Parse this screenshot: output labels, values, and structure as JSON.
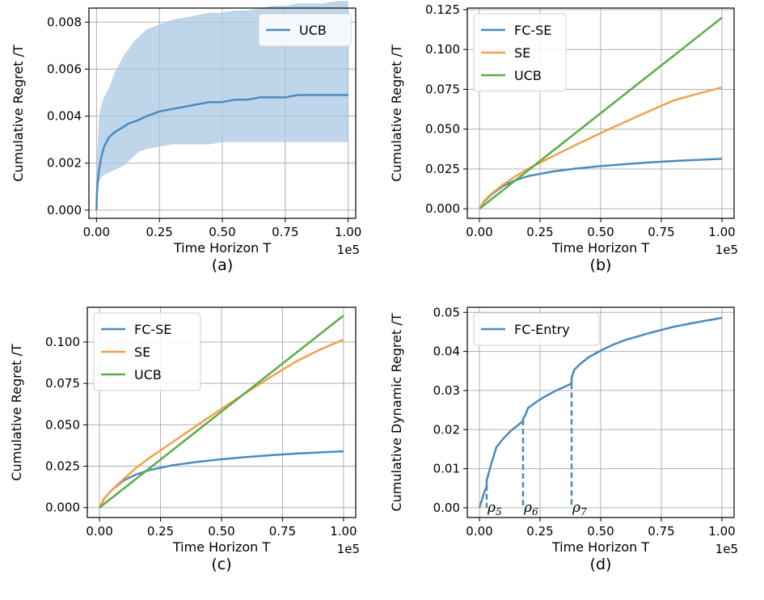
{
  "chart_data": [
    {
      "id": "a",
      "type": "line",
      "caption": "(a)",
      "xlabel": "Time Horizon T",
      "ylabel": "Cumulative Regret /T",
      "offset_text": "1e5",
      "xlim": [
        -0.03,
        1.03
      ],
      "ylim": [
        -0.00035,
        0.0086
      ],
      "xticks": [
        0.0,
        0.25,
        0.5,
        0.75,
        1.0
      ],
      "xtick_labels": [
        "0.00",
        "0.25",
        "0.50",
        "0.75",
        "1.00"
      ],
      "yticks": [
        0.0,
        0.002,
        0.004,
        0.006,
        0.008
      ],
      "ytick_labels": [
        "0.000",
        "0.002",
        "0.004",
        "0.006",
        "0.008"
      ],
      "grid": true,
      "legend_position": "top-right",
      "band": {
        "x": [
          0.0,
          0.003,
          0.01,
          0.02,
          0.03,
          0.05,
          0.07,
          0.09,
          0.11,
          0.13,
          0.15,
          0.17,
          0.2,
          0.25,
          0.3,
          0.35,
          0.4,
          0.45,
          0.5,
          0.55,
          0.6,
          0.65,
          0.7,
          0.75,
          0.8,
          0.85,
          0.9,
          0.95,
          1.0
        ],
        "upper": [
          0.0,
          0.0025,
          0.004,
          0.0045,
          0.0048,
          0.0052,
          0.0058,
          0.0062,
          0.0066,
          0.0069,
          0.0072,
          0.0074,
          0.0077,
          0.0079,
          0.0081,
          0.0082,
          0.0083,
          0.0084,
          0.0084,
          0.0085,
          0.0085,
          0.0086,
          0.0087,
          0.0087,
          0.0088,
          0.0088,
          0.0088,
          0.0089,
          0.0089
        ],
        "lower": [
          0.0,
          0.0008,
          0.0012,
          0.0014,
          0.0015,
          0.0016,
          0.0017,
          0.0018,
          0.0019,
          0.0021,
          0.0023,
          0.0025,
          0.0026,
          0.0027,
          0.0028,
          0.0028,
          0.0028,
          0.0028,
          0.0029,
          0.0029,
          0.0029,
          0.0029,
          0.0029,
          0.0029,
          0.0029,
          0.0029,
          0.0029,
          0.0029,
          0.0029
        ]
      },
      "series": [
        {
          "name": "UCB",
          "color": "#4a8bbf",
          "x": [
            0.0,
            0.002,
            0.005,
            0.01,
            0.02,
            0.03,
            0.05,
            0.07,
            0.1,
            0.13,
            0.16,
            0.2,
            0.25,
            0.3,
            0.35,
            0.4,
            0.45,
            0.5,
            0.55,
            0.6,
            0.65,
            0.7,
            0.75,
            0.8,
            0.85,
            0.9,
            0.95,
            1.0
          ],
          "y": [
            0.0,
            0.0007,
            0.0012,
            0.0017,
            0.0023,
            0.0027,
            0.0031,
            0.0033,
            0.0035,
            0.0037,
            0.0038,
            0.004,
            0.0042,
            0.0043,
            0.0044,
            0.0045,
            0.0046,
            0.0046,
            0.0047,
            0.0047,
            0.0048,
            0.0048,
            0.0048,
            0.0049,
            0.0049,
            0.0049,
            0.0049,
            0.0049
          ]
        }
      ]
    },
    {
      "id": "b",
      "type": "line",
      "caption": "(b)",
      "xlabel": "Time Horizon T",
      "ylabel": "Cumulative Regret /T",
      "offset_text": "1e5",
      "xlim": [
        -0.05,
        1.05
      ],
      "ylim": [
        -0.006,
        0.126
      ],
      "xticks": [
        0.0,
        0.25,
        0.5,
        0.75,
        1.0
      ],
      "xtick_labels": [
        "0.00",
        "0.25",
        "0.50",
        "0.75",
        "1.00"
      ],
      "yticks": [
        0.0,
        0.025,
        0.05,
        0.075,
        0.1,
        0.125
      ],
      "ytick_labels": [
        "0.000",
        "0.025",
        "0.050",
        "0.075",
        "0.100",
        "0.125"
      ],
      "grid": true,
      "legend_position": "top-left",
      "series": [
        {
          "name": "FC-SE",
          "color": "#4a8bbf",
          "x": [
            0.0,
            0.02,
            0.05,
            0.1,
            0.15,
            0.2,
            0.3,
            0.4,
            0.5,
            0.6,
            0.7,
            0.8,
            0.9,
            1.0
          ],
          "y": [
            0.0,
            0.0045,
            0.009,
            0.0145,
            0.018,
            0.0205,
            0.0233,
            0.0253,
            0.0268,
            0.028,
            0.0291,
            0.03,
            0.0307,
            0.0314
          ]
        },
        {
          "name": "SE",
          "color": "#f2a04e",
          "x": [
            0.0,
            0.02,
            0.05,
            0.1,
            0.15,
            0.2,
            0.3,
            0.4,
            0.5,
            0.6,
            0.7,
            0.8,
            0.9,
            1.0
          ],
          "y": [
            0.0,
            0.005,
            0.0095,
            0.0155,
            0.0205,
            0.025,
            0.0328,
            0.0403,
            0.0475,
            0.0545,
            0.0613,
            0.068,
            0.0722,
            0.0762
          ]
        },
        {
          "name": "UCB",
          "color": "#5aad46",
          "x": [
            0.0,
            0.05,
            0.1,
            0.2,
            0.3,
            0.4,
            0.5,
            0.6,
            0.7,
            0.8,
            0.9,
            1.0
          ],
          "y": [
            0.0,
            0.006,
            0.012,
            0.024,
            0.036,
            0.048,
            0.06,
            0.072,
            0.084,
            0.096,
            0.108,
            0.12
          ]
        }
      ]
    },
    {
      "id": "c",
      "type": "line",
      "caption": "(c)",
      "xlabel": "Time Horizon T",
      "ylabel": "Cumulative Regret /T",
      "offset_text": "1e5",
      "xlim": [
        -0.05,
        1.05
      ],
      "ylim": [
        -0.006,
        0.121
      ],
      "xticks": [
        0.0,
        0.25,
        0.5,
        0.75,
        1.0
      ],
      "xtick_labels": [
        "0.00",
        "0.25",
        "0.50",
        "0.75",
        "1.00"
      ],
      "yticks": [
        0.0,
        0.025,
        0.05,
        0.075,
        0.1
      ],
      "ytick_labels": [
        "0.000",
        "0.025",
        "0.050",
        "0.075",
        "0.100"
      ],
      "grid": true,
      "legend_position": "top-left",
      "series": [
        {
          "name": "FC-SE",
          "color": "#4a8bbf",
          "x": [
            0.0,
            0.02,
            0.05,
            0.1,
            0.15,
            0.2,
            0.3,
            0.4,
            0.5,
            0.6,
            0.7,
            0.8,
            0.9,
            1.0
          ],
          "y": [
            0.0,
            0.0055,
            0.0105,
            0.0165,
            0.02,
            0.0225,
            0.0256,
            0.0276,
            0.0292,
            0.0305,
            0.0316,
            0.0326,
            0.0333,
            0.034
          ]
        },
        {
          "name": "SE",
          "color": "#f2a04e",
          "x": [
            0.0,
            0.02,
            0.05,
            0.1,
            0.15,
            0.2,
            0.3,
            0.4,
            0.5,
            0.6,
            0.7,
            0.8,
            0.9,
            1.0
          ],
          "y": [
            0.0,
            0.0055,
            0.0105,
            0.0175,
            0.024,
            0.0295,
            0.0396,
            0.0497,
            0.0597,
            0.0693,
            0.0787,
            0.0878,
            0.0952,
            0.1015
          ]
        },
        {
          "name": "UCB",
          "color": "#5aad46",
          "x": [
            0.0,
            0.05,
            0.1,
            0.2,
            0.3,
            0.4,
            0.5,
            0.6,
            0.7,
            0.8,
            0.9,
            1.0
          ],
          "y": [
            0.0,
            0.0058,
            0.0116,
            0.0232,
            0.0348,
            0.0464,
            0.058,
            0.0696,
            0.0812,
            0.0928,
            0.1044,
            0.116
          ]
        }
      ]
    },
    {
      "id": "d",
      "type": "line",
      "caption": "(d)",
      "xlabel": "Time Horizon T",
      "ylabel": "Cumulative Dynamic Regret /T",
      "offset_text": "1e5",
      "xlim": [
        -0.05,
        1.05
      ],
      "ylim": [
        -0.0025,
        0.0513
      ],
      "xticks": [
        0.0,
        0.25,
        0.5,
        0.75,
        1.0
      ],
      "xtick_labels": [
        "0.00",
        "0.25",
        "0.50",
        "0.75",
        "1.00"
      ],
      "yticks": [
        0.0,
        0.01,
        0.02,
        0.03,
        0.04,
        0.05
      ],
      "ytick_labels": [
        "0.00",
        "0.01",
        "0.02",
        "0.03",
        "0.04",
        "0.05"
      ],
      "grid": true,
      "legend_position": "top-left",
      "series": [
        {
          "name": "FC-Entry",
          "color": "#4a8bbf",
          "x": [
            0.0,
            0.01,
            0.02,
            0.03,
            0.03,
            0.05,
            0.07,
            0.1,
            0.13,
            0.16,
            0.18,
            0.18,
            0.19,
            0.2,
            0.24,
            0.28,
            0.32,
            0.36,
            0.38,
            0.38,
            0.39,
            0.41,
            0.45,
            0.5,
            0.55,
            0.6,
            0.7,
            0.8,
            0.9,
            1.0
          ],
          "y": [
            0.0,
            0.002,
            0.004,
            0.0055,
            0.007,
            0.0115,
            0.0155,
            0.0178,
            0.0197,
            0.0212,
            0.0222,
            0.0228,
            0.0238,
            0.0255,
            0.0273,
            0.0288,
            0.0301,
            0.0312,
            0.0318,
            0.0332,
            0.0352,
            0.0365,
            0.0385,
            0.0402,
            0.0417,
            0.0429,
            0.0447,
            0.0463,
            0.0475,
            0.0486
          ]
        }
      ],
      "change_points": [
        {
          "x": 0.03,
          "y": 0.0058,
          "label": "ρ",
          "sub": "5"
        },
        {
          "x": 0.18,
          "y": 0.0225,
          "label": "ρ",
          "sub": "6"
        },
        {
          "x": 0.38,
          "y": 0.0318,
          "label": "ρ",
          "sub": "7"
        }
      ]
    }
  ]
}
